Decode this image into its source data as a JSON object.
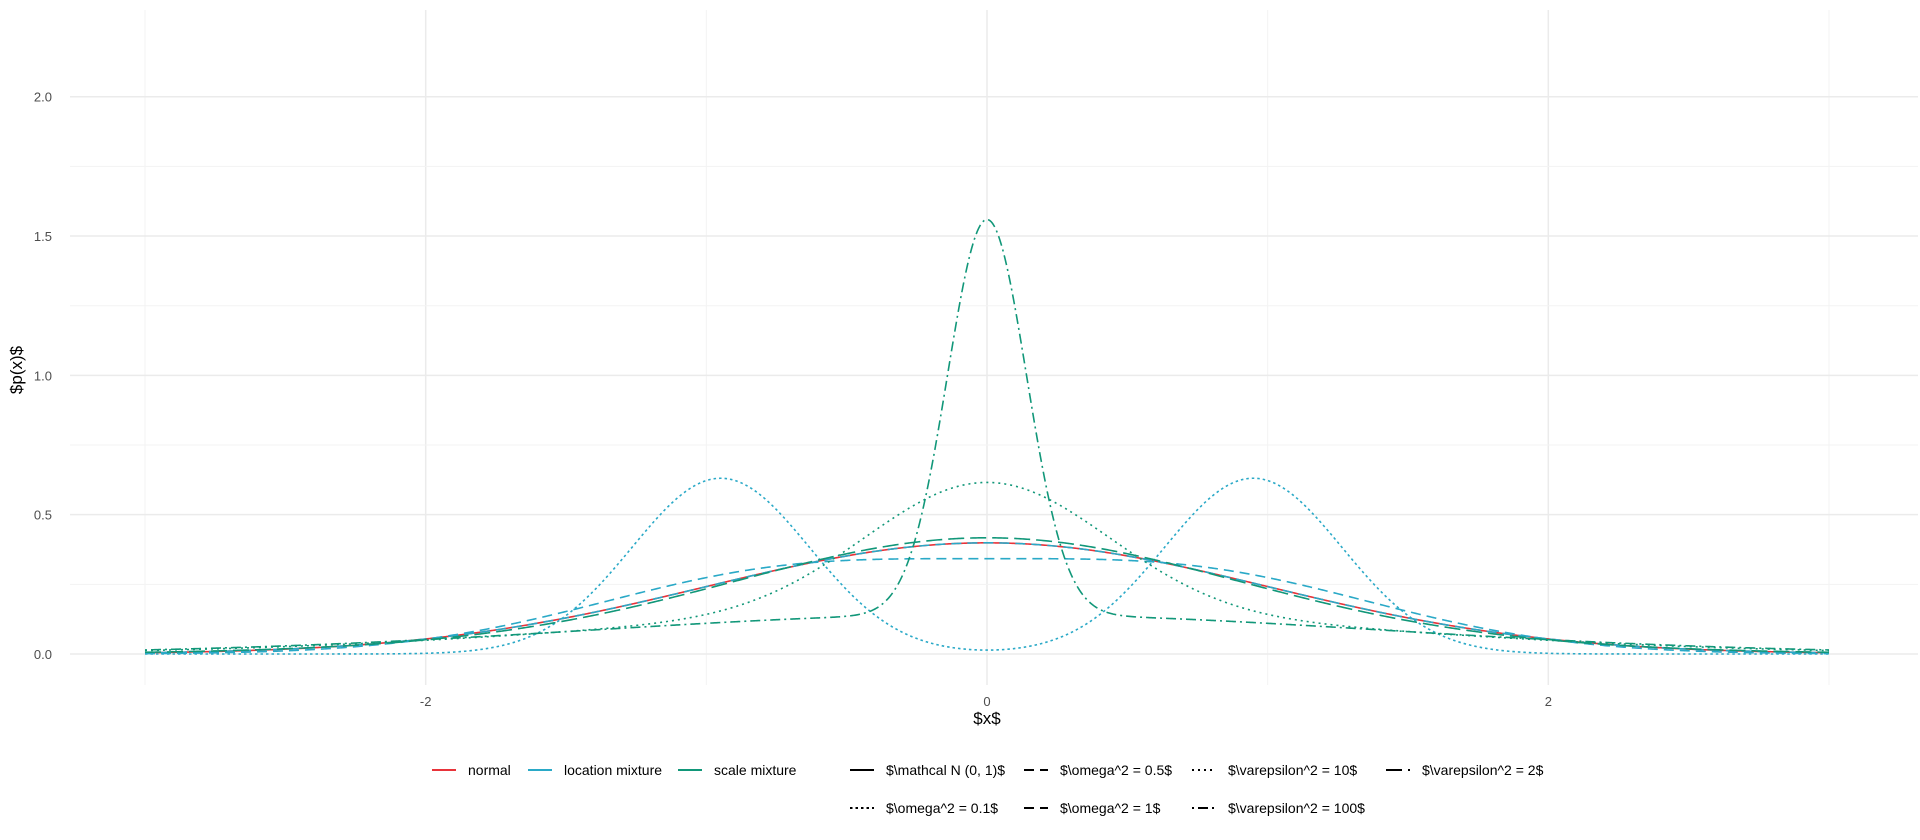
{
  "chart_data": {
    "type": "line",
    "xlabel": "$x$",
    "ylabel": "$p(x)$",
    "xlim": [
      -3,
      3
    ],
    "ylim": [
      0,
      2.2
    ],
    "x_ticks": [
      -2,
      0,
      2
    ],
    "x_tick_labels": [
      "-2",
      "0",
      "2"
    ],
    "y_ticks": [
      0,
      0.5,
      1,
      1.5,
      2
    ],
    "y_tick_labels": [
      "0.0",
      "0.5",
      "1.0",
      "1.5",
      "2.0"
    ],
    "grid": true,
    "legend_position": "bottom",
    "colors": {
      "normal": "#e8333a",
      "location": "#2aa9c7",
      "scale": "#119779"
    },
    "legend_color": [
      {
        "key": "normal",
        "label": "normal",
        "color": "#e8333a"
      },
      {
        "key": "location",
        "label": "location mixture",
        "color": "#2aa9c7"
      },
      {
        "key": "scale",
        "label": "scale mixture",
        "color": "#119779"
      }
    ],
    "legend_linetype": [
      {
        "key": "lt1",
        "label": "$\\mathcal N (0, 1)$",
        "dash": "solid"
      },
      {
        "key": "lt2",
        "label": "$\\omega^2 = 0.5$",
        "dash": "dashed"
      },
      {
        "key": "lt3",
        "label": "$\\varepsilon^2 = 10$",
        "dash": "dotted"
      },
      {
        "key": "lt4",
        "label": "$\\varepsilon^2 = 2$",
        "dash": "longdash"
      },
      {
        "key": "lt5",
        "label": "$\\omega^2 = 0.1$",
        "dash": "finedotted"
      },
      {
        "key": "lt6",
        "label": "$\\omega^2 = 1$",
        "dash": "dashed"
      },
      {
        "key": "lt7",
        "label": "$\\varepsilon^2 = 100$",
        "dash": "dotdash"
      }
    ],
    "series": [
      {
        "name": "normal N(0,1)",
        "family": "normal",
        "color": "#e8333a",
        "dash": "solid",
        "kind": "normal",
        "sd": 1
      },
      {
        "name": "location mixture omega^2 = 0.1",
        "family": "location",
        "color": "#2aa9c7",
        "dash": "finedotted",
        "kind": "location",
        "omega2": 0.1
      },
      {
        "name": "location mixture omega^2 = 0.5",
        "family": "location",
        "color": "#2aa9c7",
        "dash": "dashed",
        "kind": "location",
        "omega2": 0.5
      },
      {
        "name": "location mixture omega^2 = 1",
        "family": "location",
        "color": "#2aa9c7",
        "dash": "dashed",
        "kind": "location",
        "omega2": 1
      },
      {
        "name": "scale mixture epsilon^2 = 2",
        "family": "scale",
        "color": "#119779",
        "dash": "longdash",
        "kind": "scale",
        "eps2": 2
      },
      {
        "name": "scale mixture epsilon^2 = 10",
        "family": "scale",
        "color": "#119779",
        "dash": "dotted",
        "kind": "scale",
        "eps2": 10
      },
      {
        "name": "scale mixture epsilon^2 = 100",
        "family": "scale",
        "color": "#119779",
        "dash": "dotdash",
        "kind": "scale",
        "eps2": 100
      }
    ]
  }
}
